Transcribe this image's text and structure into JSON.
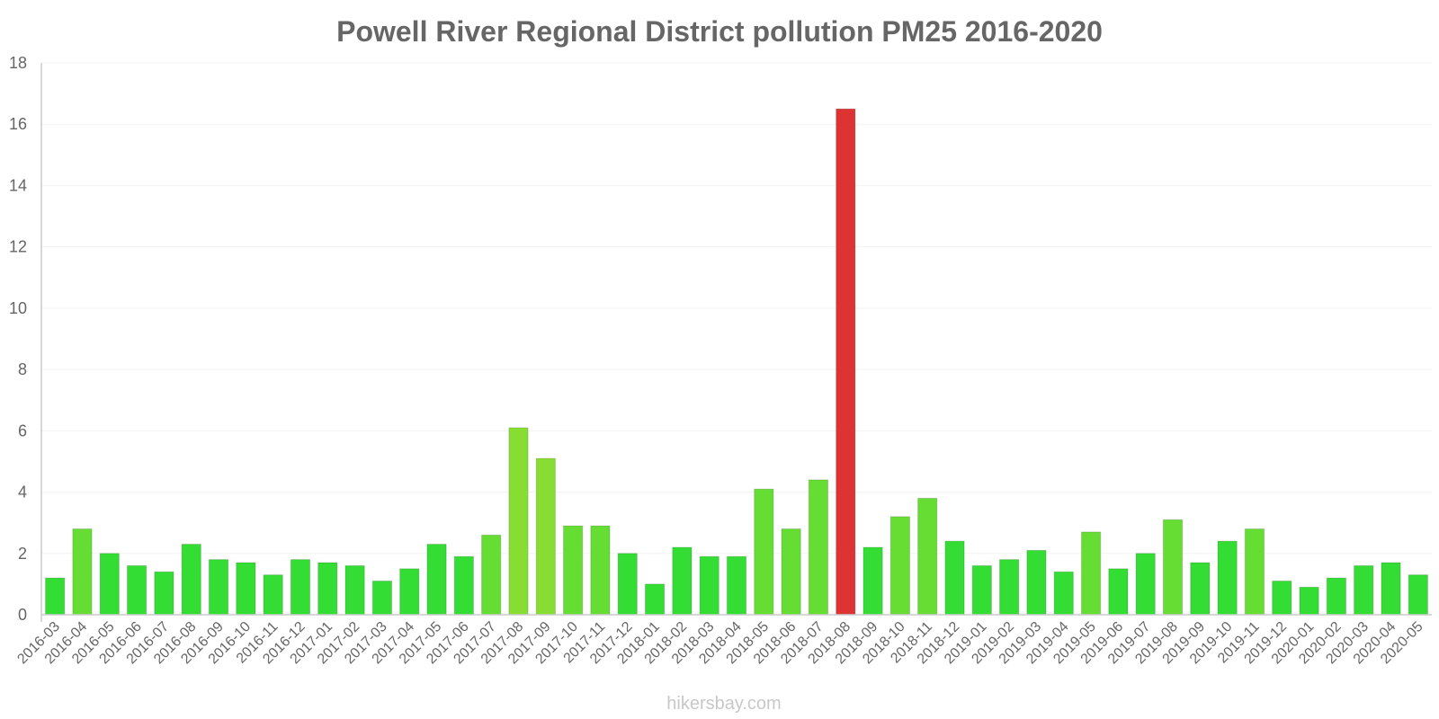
{
  "chart_data": {
    "type": "bar",
    "title": "Powell River Regional District pollution PM25 2016-2020",
    "xlabel": "",
    "ylabel": "",
    "ylim": [
      0,
      18
    ],
    "yticks": [
      0,
      2,
      4,
      6,
      8,
      10,
      12,
      14,
      16,
      18
    ],
    "categories": [
      "2016-03",
      "2016-04",
      "2016-05",
      "2016-06",
      "2016-07",
      "2016-08",
      "2016-09",
      "2016-10",
      "2016-11",
      "2016-12",
      "2017-01",
      "2017-02",
      "2017-03",
      "2017-04",
      "2017-05",
      "2017-06",
      "2017-07",
      "2017-08",
      "2017-09",
      "2017-10",
      "2017-11",
      "2017-12",
      "2018-01",
      "2018-02",
      "2018-03",
      "2018-04",
      "2018-05",
      "2018-06",
      "2018-07",
      "2018-08",
      "2018-09",
      "2018-10",
      "2018-11",
      "2018-12",
      "2019-01",
      "2019-02",
      "2019-03",
      "2019-04",
      "2019-05",
      "2019-06",
      "2019-07",
      "2019-08",
      "2019-09",
      "2019-10",
      "2019-11",
      "2019-12",
      "2020-01",
      "2020-02",
      "2020-03",
      "2020-04",
      "2020-05"
    ],
    "values": [
      1.2,
      2.8,
      2.0,
      1.6,
      1.4,
      2.3,
      1.8,
      1.7,
      1.3,
      1.8,
      1.7,
      1.6,
      1.1,
      1.5,
      2.3,
      1.9,
      2.6,
      6.1,
      5.1,
      2.9,
      2.9,
      2.0,
      1.0,
      2.2,
      1.9,
      1.9,
      4.1,
      2.8,
      4.4,
      16.5,
      2.2,
      3.2,
      3.8,
      2.4,
      1.6,
      1.8,
      2.1,
      1.4,
      2.7,
      1.5,
      2.0,
      3.1,
      1.7,
      2.4,
      2.8,
      1.1,
      0.9,
      1.2,
      1.6,
      1.7,
      1.3
    ],
    "colors": {
      "low": "#33dd33",
      "moderate": "#66dd33",
      "elevated": "#88dd33",
      "high": "#dd3333",
      "axis": "#cccccc",
      "grid": "#f3f3f3",
      "text": "#666666"
    },
    "legend": "none",
    "grid": true
  },
  "watermark": "hikersbay.com"
}
